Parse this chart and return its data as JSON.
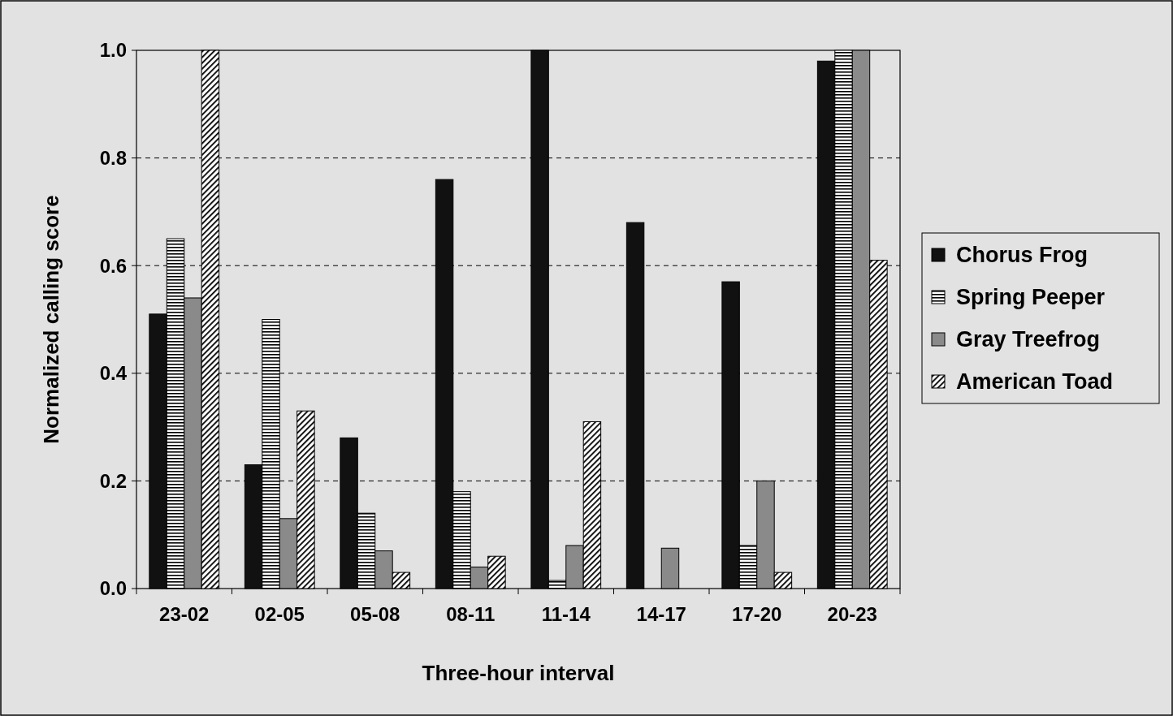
{
  "chart_data": {
    "type": "bar",
    "xlabel": "Three-hour interval",
    "ylabel": "Normalized calling score",
    "categories": [
      "23-02",
      "02-05",
      "05-08",
      "08-11",
      "11-14",
      "14-17",
      "17-20",
      "20-23"
    ],
    "series": [
      {
        "name": "Chorus Frog",
        "color": "#111111",
        "values": [
          0.51,
          0.23,
          0.28,
          0.76,
          1.0,
          0.68,
          0.57,
          0.98
        ]
      },
      {
        "name": "Spring Peeper",
        "color": "#000000",
        "values": [
          0.65,
          0.5,
          0.14,
          0.18,
          0.015,
          0,
          0.08,
          1.0
        ]
      },
      {
        "name": "Gray Treefrog",
        "color": "#8a8a8a",
        "values": [
          0.54,
          0.13,
          0.07,
          0.04,
          0.08,
          0.075,
          0.2,
          1.0
        ]
      },
      {
        "name": "American Toad",
        "color": "#000000",
        "values": [
          1.0,
          0.33,
          0.03,
          0.06,
          0.31,
          0,
          0.03,
          0.61
        ]
      }
    ],
    "ylim": [
      0,
      1
    ],
    "yticks": [
      {
        "value": 0,
        "label": "0.0"
      },
      {
        "value": 0.2,
        "label": "0.2"
      },
      {
        "value": 0.4,
        "label": "0.4"
      },
      {
        "value": 0.6,
        "label": "0.6"
      },
      {
        "value": 0.8,
        "label": "0.8"
      },
      {
        "value": 1,
        "label": "1.0"
      }
    ],
    "grid": "y",
    "legend": "right"
  }
}
